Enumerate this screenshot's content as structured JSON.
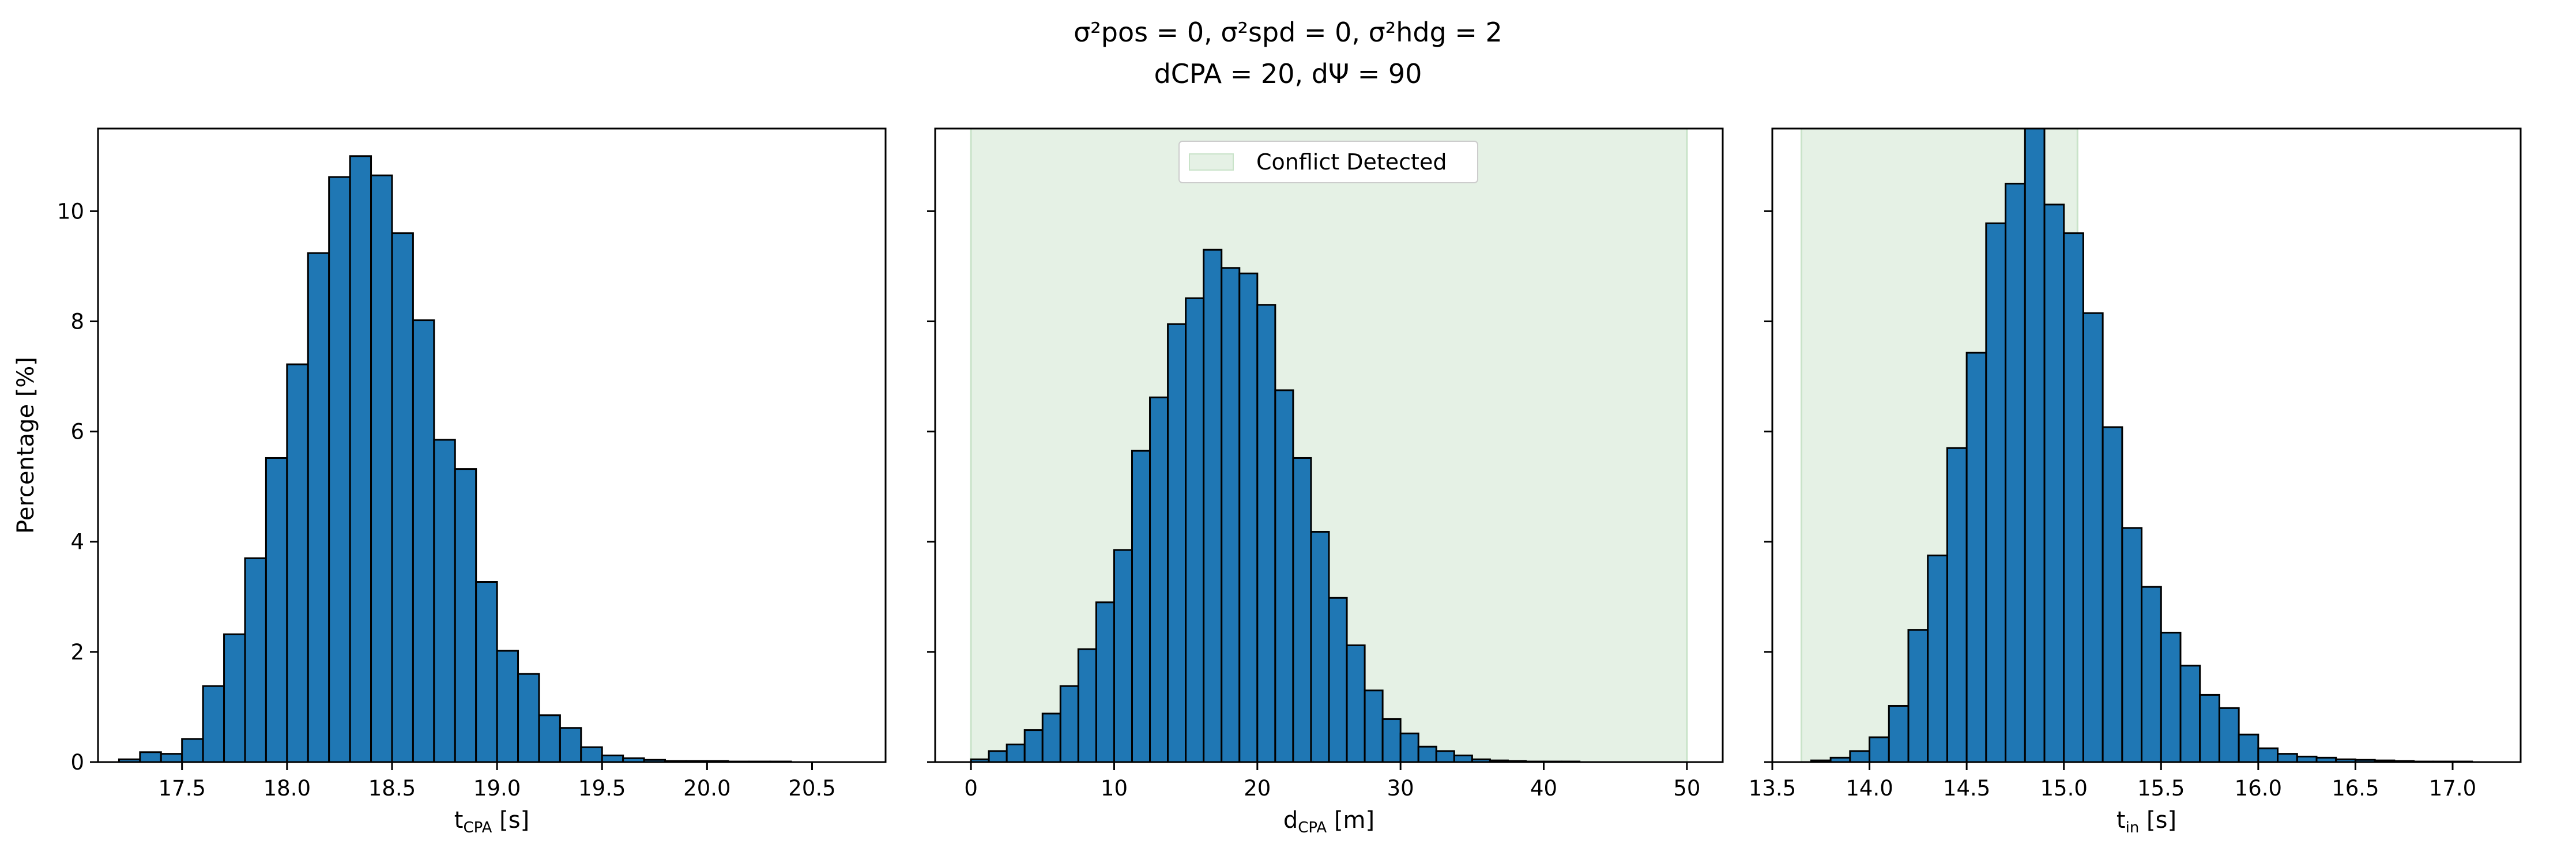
{
  "figure": {
    "title_line1": "σ²pos = 0, σ²spd = 0, σ²hdg = 2",
    "title_line2": "dCPA = 20, dΨ = 90"
  },
  "colors": {
    "bar": "#1f77b4",
    "shade": "#e5f1e5",
    "shade_edge": "#c9e3c9"
  },
  "chart_data": [
    {
      "type": "bar",
      "xlabel": "tCPA [s]",
      "ylabel": "Percentage [%]",
      "xlim": [
        17.1,
        20.85
      ],
      "ylim": [
        0,
        11.5
      ],
      "xticks": [
        17.5,
        18.0,
        18.5,
        19.0,
        19.5,
        20.0,
        20.5
      ],
      "yticks": [
        0,
        2,
        4,
        6,
        8,
        10
      ],
      "bin_start": 17.2,
      "bin_width": 0.1,
      "values": [
        0.05,
        0.18,
        0.15,
        0.42,
        1.38,
        2.32,
        3.7,
        5.52,
        7.22,
        9.24,
        10.62,
        11.0,
        10.65,
        9.6,
        8.02,
        5.85,
        5.32,
        3.27,
        2.02,
        1.6,
        0.85,
        0.62,
        0.27,
        0.12,
        0.07,
        0.04,
        0.02,
        0.02,
        0.02,
        0.01,
        0.01,
        0.01
      ],
      "shade": null
    },
    {
      "type": "bar",
      "xlabel": "dCPA [m]",
      "ylabel": "",
      "xlim": [
        -2.5,
        52.5
      ],
      "ylim": [
        0,
        11.5
      ],
      "xticks": [
        0,
        10,
        20,
        30,
        40,
        50
      ],
      "yticks": [
        0,
        2,
        4,
        6,
        8,
        10
      ],
      "bin_start": 0,
      "bin_width": 1.25,
      "values": [
        0.05,
        0.2,
        0.32,
        0.58,
        0.88,
        1.38,
        2.05,
        2.9,
        3.85,
        5.65,
        6.62,
        7.95,
        8.42,
        9.3,
        8.97,
        8.87,
        8.3,
        6.75,
        5.52,
        4.18,
        2.98,
        2.12,
        1.3,
        0.78,
        0.52,
        0.28,
        0.2,
        0.12,
        0.05,
        0.03,
        0.02,
        0.01,
        0.01,
        0.01
      ],
      "shade": {
        "from": 0,
        "to": 50,
        "label": "Conflict Detected"
      }
    },
    {
      "type": "bar",
      "xlabel": "tin [s]",
      "ylabel": "",
      "xlim": [
        13.5,
        17.35
      ],
      "ylim": [
        0,
        11.5
      ],
      "xticks": [
        13.5,
        14.0,
        14.5,
        15.0,
        15.5,
        16.0,
        16.5,
        17.0
      ],
      "yticks": [
        0,
        2,
        4,
        6,
        8,
        10
      ],
      "bin_start": 13.7,
      "bin_width": 0.1,
      "values": [
        0.03,
        0.08,
        0.2,
        0.45,
        1.02,
        2.4,
        3.75,
        5.7,
        7.43,
        9.78,
        10.5,
        11.55,
        10.12,
        9.6,
        8.15,
        6.08,
        4.25,
        3.18,
        2.35,
        1.75,
        1.22,
        0.98,
        0.5,
        0.25,
        0.15,
        0.1,
        0.08,
        0.05,
        0.04,
        0.03,
        0.02,
        0.01,
        0.01,
        0.01
      ],
      "shade": {
        "from": 13.65,
        "to": 15.07,
        "label": ""
      }
    }
  ]
}
